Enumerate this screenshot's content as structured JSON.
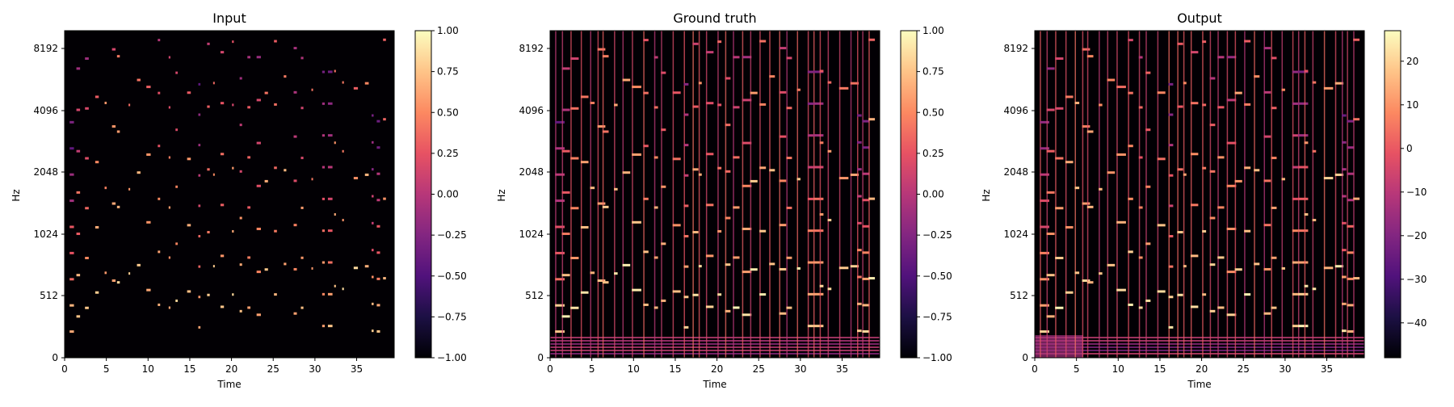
{
  "chart_data": [
    {
      "type": "heatmap",
      "title": "Input",
      "xlabel": "Time",
      "ylabel": "Hz",
      "xlim": [
        0,
        39.5
      ],
      "x_ticks": [
        0,
        5,
        10,
        15,
        20,
        25,
        30,
        35
      ],
      "y_ticks": [
        "0",
        "512",
        "1024",
        "2048",
        "4096",
        "8192"
      ],
      "colorbar": {
        "min": -1.0,
        "max": 1.0,
        "ticks": [
          "1.00",
          "0.75",
          "0.50",
          "0.25",
          "0.00",
          "−0.25",
          "−0.50",
          "−0.75",
          "−1.00"
        ]
      }
    },
    {
      "type": "heatmap",
      "title": "Ground truth",
      "xlabel": "Time",
      "ylabel": "Hz",
      "xlim": [
        0,
        39.5
      ],
      "x_ticks": [
        0,
        5,
        10,
        15,
        20,
        25,
        30,
        35
      ],
      "y_ticks": [
        "0",
        "512",
        "1024",
        "2048",
        "4096",
        "8192"
      ],
      "colorbar": {
        "min": -1.0,
        "max": 1.0,
        "ticks": [
          "1.00",
          "0.75",
          "0.50",
          "0.25",
          "0.00",
          "−0.25",
          "−0.50",
          "−0.75",
          "−1.00"
        ]
      }
    },
    {
      "type": "heatmap",
      "title": "Output",
      "xlabel": "Time",
      "ylabel": "Hz",
      "xlim": [
        0,
        39.5
      ],
      "x_ticks": [
        0,
        5,
        10,
        15,
        20,
        25,
        30,
        35
      ],
      "y_ticks": [
        "0",
        "512",
        "1024",
        "2048",
        "4096",
        "8192"
      ],
      "colorbar": {
        "min": -48,
        "max": 27,
        "ticks": [
          "20",
          "10",
          "0",
          "−10",
          "−20",
          "−30",
          "−40"
        ]
      }
    }
  ],
  "colormap": {
    "name": "magma",
    "stops": [
      "#000004",
      "#1c1044",
      "#51127c",
      "#832681",
      "#b73779",
      "#e75263",
      "#fc8961",
      "#fec488",
      "#fcfdbf"
    ]
  }
}
